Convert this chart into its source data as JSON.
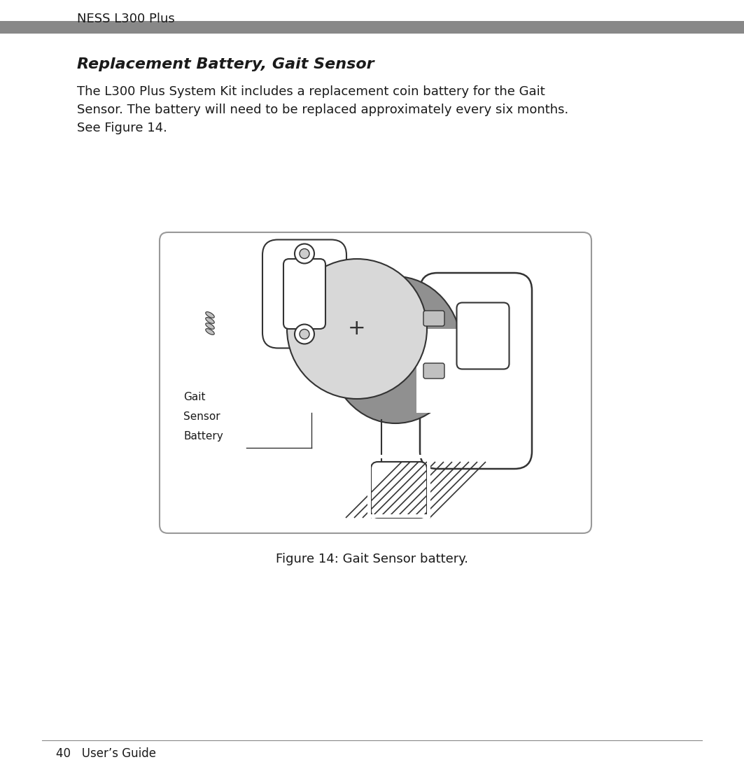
{
  "page_width": 10.63,
  "page_height": 10.99,
  "background_color": "#ffffff",
  "header_text": "NESS L300 Plus",
  "header_bar_color": "#7a7a7a",
  "header_text_color": "#1a1a1a",
  "header_font_size": 13,
  "title_text": "Replacement Battery, Gait Sensor",
  "title_font_size": 16,
  "body_text_line1": "The L300 Plus System Kit includes a replacement coin battery for the Gait",
  "body_text_line2": "Sensor. The battery will need to be replaced approximately every six months.",
  "body_text_line3": "See Figure 14.",
  "body_font_size": 13,
  "figure_caption": "Figure 14: Gait Sensor battery.",
  "caption_font_size": 13,
  "label_text_line1": "Gait",
  "label_text_line2": "Sensor",
  "label_text_line3": "Battery",
  "label_font_size": 11,
  "footer_text": "40   User’s Guide",
  "footer_font_size": 12,
  "text_color": "#1a1a1a",
  "line_color": "#333333",
  "gray_bar_color": "#888888",
  "box_border_color": "#999999",
  "box_bg_color": "#ffffff",
  "battery_light_color": "#d8d8d8",
  "battery_dark_color": "#909090",
  "device_bg_color": "#f0f0f0"
}
